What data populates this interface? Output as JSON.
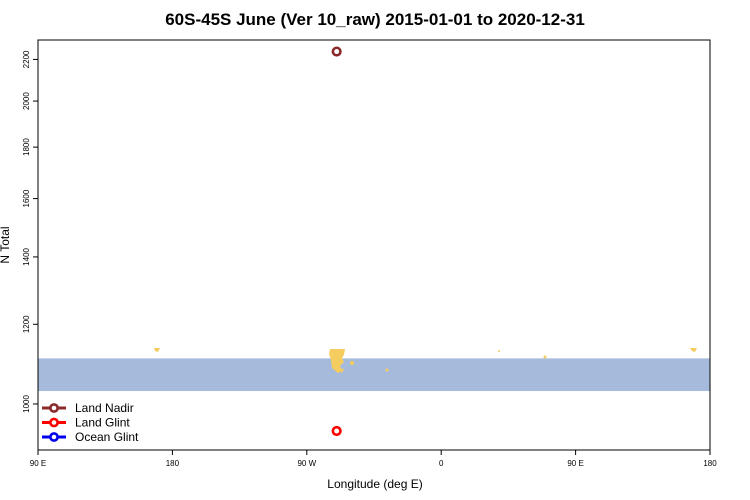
{
  "chart_data": {
    "type": "scatter",
    "title": "60S-45S June (Ver 10_raw)   2015-01-01 to 2020-12-31",
    "xlabel": "Longitude (deg E)",
    "ylabel": "N Total",
    "x_ticks": [
      {
        "value": 90,
        "label": "90 E"
      },
      {
        "value": 180,
        "label": "180"
      },
      {
        "value": 270,
        "label": "90 W"
      },
      {
        "value": 360,
        "label": "0"
      },
      {
        "value": 450,
        "label": "90 E"
      },
      {
        "value": 540,
        "label": "180"
      }
    ],
    "y_ticks": [
      1000,
      1200,
      1400,
      1600,
      1800,
      2000,
      2200
    ],
    "xlim": [
      90,
      540
    ],
    "ylim": [
      900,
      2300
    ],
    "y_scale": "log",
    "series": [
      {
        "name": "Land Nadir",
        "color": "#8b2a2a",
        "x": [
          290
        ],
        "y": [
          2240
        ]
      },
      {
        "name": "Land Glint",
        "color": "#ff0000",
        "x": [
          290
        ],
        "y": [
          940
        ]
      },
      {
        "name": "Ocean Glint",
        "color": "#0000ee",
        "x": [],
        "y": []
      }
    ],
    "legend_position": "bottom-left",
    "map_band": {
      "ocean_color": "#a6bbdc",
      "land_color": "#f5cc60",
      "y_range": [
        1030,
        1110
      ]
    }
  }
}
